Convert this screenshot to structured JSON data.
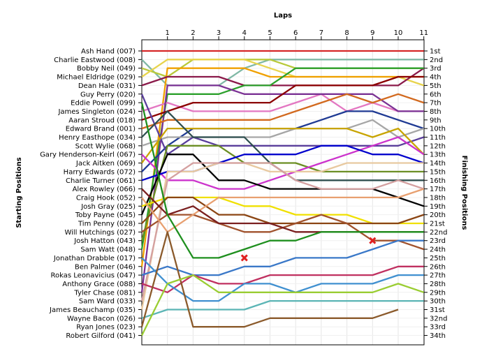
{
  "chart_data": {
    "type": "line",
    "title": "Laps",
    "ylabel_left": "Starting Positions",
    "ylabel_right": "Finishing Positions",
    "x": [
      0,
      1,
      2,
      3,
      4,
      5,
      6,
      7,
      8,
      9,
      10,
      11
    ],
    "x_tick_labels": [
      "1",
      "2",
      "3",
      "4",
      "5",
      "6",
      "7",
      "8",
      "9",
      "10",
      "11"
    ],
    "starting_labels": [
      "Ash Hand (007)",
      "Charlie Eastwood (008)",
      "Bobby Neil (049)",
      "Michael Eldridge (029)",
      "Dean Hale (031)",
      "Guy Perry (020)",
      "Eddie Powell (099)",
      "James Singleton (024)",
      "Aaran Stroud (018)",
      "Edward Brand (001)",
      "Henry Easthope (034)",
      "Scott Wylie (068)",
      "Gary Henderson-Keirl (067)",
      "Jack Aitken (069)",
      "Harry Edwards (072)",
      "Charlie Turner (061)",
      "Alex Rowley (066)",
      "Craig Hook (052)",
      "Josh Gray (025)",
      "Toby Payne (045)",
      "Tim Penny (028)",
      "Will Hutchings (027)",
      "Josh Hatton (043)",
      "Sam Watt (048)",
      "Jonathan Drabble (017)",
      "Ben Palmer (046)",
      "Rokas Leonavicius (047)",
      "Anthony Grace (088)",
      "Tyler Chase (081)",
      "Sam Ward (033)",
      "James Beauchamp (035)",
      "Wayne Bacon (026)",
      "Ryan Jones (023)",
      "Robert Gilford (041)"
    ],
    "finishing_labels": [
      "1st",
      "2nd",
      "3rd",
      "4th",
      "5th",
      "6th",
      "7th",
      "8th",
      "9th",
      "10th",
      "11th",
      "12th",
      "13th",
      "14th",
      "15th",
      "16th",
      "17th",
      "18th",
      "19th",
      "20th",
      "21st",
      "22nd",
      "23rd",
      "24th",
      "25th",
      "26th",
      "27th",
      "28th",
      "29th",
      "30th",
      "31st",
      "32nd",
      "33rd",
      "34th"
    ],
    "series": [
      {
        "color": "#d62728",
        "positions": [
          1,
          1,
          1,
          1,
          1,
          1,
          1,
          1,
          1,
          1,
          1,
          1
        ]
      },
      {
        "color": "#7fb8a5",
        "positions": [
          2,
          5,
          5,
          5,
          3,
          2,
          2,
          2,
          2,
          2,
          2,
          2
        ]
      },
      {
        "color": "#b8c93a",
        "positions": [
          3,
          4,
          2,
          2,
          2,
          2,
          3,
          3,
          3,
          3,
          3,
          3
        ]
      },
      {
        "color": "#e8d44d",
        "positions": [
          4,
          2,
          2,
          2,
          2,
          3,
          4,
          4,
          4,
          4,
          4,
          5
        ]
      },
      {
        "color": "#f0a000",
        "positions": [
          26,
          3,
          3,
          3,
          3,
          4,
          4,
          4,
          4,
          4,
          4,
          4
        ]
      },
      {
        "color": "#8b1a4a",
        "positions": [
          5,
          4,
          4,
          4,
          5,
          5,
          5,
          5,
          5,
          5,
          5,
          3
        ]
      },
      {
        "color": "#2ca02c",
        "positions": [
          24,
          6,
          6,
          6,
          5,
          5,
          3,
          3,
          3,
          3,
          3,
          3
        ]
      },
      {
        "color": "#e377c2",
        "positions": [
          8,
          7,
          8,
          8,
          8,
          8,
          7,
          6,
          8,
          7,
          8,
          8
        ]
      },
      {
        "color": "#7b3294",
        "positions": [
          29,
          5,
          5,
          5,
          6,
          6,
          6,
          6,
          6,
          6,
          8,
          8
        ]
      },
      {
        "color": "#8b0000",
        "positions": [
          9,
          8,
          7,
          7,
          7,
          7,
          5,
          5,
          5,
          5,
          4,
          4
        ]
      },
      {
        "color": "#1f3a93",
        "positions": [
          15,
          12,
          10,
          10,
          10,
          10,
          10,
          9,
          8,
          8,
          9,
          10
        ]
      },
      {
        "color": "#d2691e",
        "positions": [
          10,
          9,
          9,
          9,
          9,
          9,
          8,
          7,
          6,
          7,
          6,
          7
        ]
      },
      {
        "color": "#a6a6a6",
        "positions": [
          12,
          11,
          11,
          11,
          11,
          11,
          10,
          10,
          10,
          9,
          11,
          10
        ]
      },
      {
        "color": "#5a3e9b",
        "positions": [
          6,
          13,
          11,
          12,
          12,
          12,
          12,
          12,
          12,
          12,
          12,
          11
        ]
      },
      {
        "color": "#c8a400",
        "positions": [
          14,
          10,
          10,
          10,
          10,
          10,
          10,
          10,
          10,
          11,
          10,
          13
        ]
      },
      {
        "color": "#6b8e23",
        "positions": [
          23,
          12,
          12,
          12,
          14,
          14,
          14,
          15,
          15,
          15,
          15,
          15
        ]
      },
      {
        "color": "#2f4f4f",
        "positions": [
          11,
          8,
          11,
          11,
          11,
          14,
          16,
          16,
          16,
          16,
          16,
          16
        ]
      },
      {
        "color": "#cc33cc",
        "positions": [
          13,
          16,
          16,
          17,
          17,
          16,
          15,
          14,
          13,
          12,
          11,
          13
        ]
      },
      {
        "color": "#0000cc",
        "positions": [
          16,
          15,
          15,
          14,
          13,
          13,
          13,
          12,
          12,
          13,
          13,
          14
        ]
      },
      {
        "color": "#000000",
        "positions": [
          20,
          13,
          13,
          16,
          16,
          17,
          17,
          17,
          17,
          17,
          18,
          19
        ]
      },
      {
        "color": "#e8c9a0",
        "positions": [
          31,
          15,
          15,
          14,
          14,
          15,
          15,
          15,
          14,
          14,
          14,
          14
        ]
      },
      {
        "color": "#f0e000",
        "positions": [
          19,
          18,
          18,
          18,
          19,
          19,
          20,
          20,
          20,
          21,
          21,
          21
        ]
      },
      {
        "color": "#d4a0a0",
        "positions": [
          30,
          16,
          14,
          14,
          14,
          14,
          16,
          17,
          17,
          17,
          16,
          17
        ]
      },
      {
        "color": "#8b4513",
        "positions": [
          21,
          18,
          18,
          20,
          20,
          21,
          21,
          21,
          21,
          21,
          21,
          20
        ]
      },
      {
        "color": "#a0522d",
        "positions": [
          22,
          20,
          20,
          21,
          22,
          22,
          21,
          20,
          21,
          23,
          23,
          24
        ]
      },
      {
        "color": "#e8a070",
        "positions": [
          18,
          22,
          20,
          18,
          18,
          18,
          18,
          18,
          18,
          18,
          18,
          17
        ]
      },
      {
        "color": "#3a78c8",
        "positions": [
          27,
          26,
          27,
          27,
          26,
          26,
          25,
          25,
          25,
          24,
          23,
          23
        ]
      },
      {
        "color": "#7a1f1f",
        "positions": [
          17,
          20,
          19,
          21,
          21,
          21,
          22,
          22,
          22,
          22,
          22,
          22
        ]
      },
      {
        "color": "#1e8f1e",
        "positions": [
          7,
          20,
          25,
          25,
          24,
          23,
          23,
          22,
          22,
          22,
          22,
          22
        ]
      },
      {
        "color": "#c03060",
        "positions": [
          28,
          29,
          27,
          28,
          28,
          27,
          27,
          27,
          27,
          27,
          26,
          26
        ]
      },
      {
        "color": "#4090d0",
        "positions": [
          25,
          28,
          30,
          30,
          28,
          28,
          29,
          28,
          28,
          28,
          27,
          27
        ]
      },
      {
        "color": "#5bb5b5",
        "positions": [
          32,
          31,
          31,
          31,
          31,
          30,
          30,
          30,
          30,
          30,
          30,
          30
        ]
      },
      {
        "color": "#8b5a2b",
        "positions": [
          33,
          22,
          33,
          33,
          33,
          32,
          32,
          32,
          32,
          32,
          31,
          null
        ]
      },
      {
        "color": "#9acd32",
        "positions": [
          34,
          28,
          27,
          29,
          29,
          29,
          29,
          29,
          29,
          29,
          28,
          29
        ]
      }
    ],
    "retirements": [
      {
        "lap": 4,
        "position": 25
      },
      {
        "lap": 9,
        "position": 23
      }
    ]
  }
}
